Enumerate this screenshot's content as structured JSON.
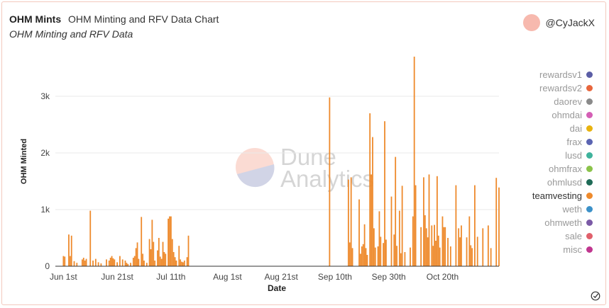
{
  "header": {
    "title": "OHM Mints",
    "subtitle": "OHM Minting and RFV Data Chart",
    "description": "OHM Minting and RFV Data"
  },
  "author": {
    "handle": "@CyJackX",
    "avatar_color": "#f7b9ae"
  },
  "watermark": {
    "line1": "Dune",
    "line2": "Analytics"
  },
  "chart_data": {
    "type": "bar",
    "xlabel": "Date",
    "ylabel": "OHM Minted",
    "x_range": [
      "2021-05-29",
      "2021-11-10"
    ],
    "ylim": [
      0,
      3700
    ],
    "y_ticks": [
      {
        "value": 0,
        "label": "0"
      },
      {
        "value": 1000,
        "label": "1k"
      },
      {
        "value": 2000,
        "label": "2k"
      },
      {
        "value": 3000,
        "label": "3k"
      }
    ],
    "x_ticks": [
      {
        "date": "2021-06-01",
        "label": "Jun 1st"
      },
      {
        "date": "2021-06-21",
        "label": "Jun 21st"
      },
      {
        "date": "2021-07-11",
        "label": "Jul 11th"
      },
      {
        "date": "2021-08-01",
        "label": "Aug 1st"
      },
      {
        "date": "2021-08-21",
        "label": "Aug 21st"
      },
      {
        "date": "2021-09-10",
        "label": "Sep 10th"
      },
      {
        "date": "2021-09-30",
        "label": "Sep 30th"
      },
      {
        "date": "2021-10-20",
        "label": "Oct 20th"
      }
    ],
    "grid": true,
    "legend_position": "right",
    "series": [
      {
        "name": "teamvesting",
        "color": "#ee8a2c",
        "points": [
          [
            "2021-06-01T00:00",
            180
          ],
          [
            "2021-06-01T12:00",
            170
          ],
          [
            "2021-06-03T00:00",
            560
          ],
          [
            "2021-06-03T12:00",
            180
          ],
          [
            "2021-06-04T00:00",
            540
          ],
          [
            "2021-06-05T00:00",
            90
          ],
          [
            "2021-06-06T00:00",
            60
          ],
          [
            "2021-06-08T00:00",
            120
          ],
          [
            "2021-06-08T12:00",
            150
          ],
          [
            "2021-06-09T00:00",
            100
          ],
          [
            "2021-06-09T12:00",
            130
          ],
          [
            "2021-06-11T00:00",
            980
          ],
          [
            "2021-06-12T00:00",
            100
          ],
          [
            "2021-06-13T00:00",
            130
          ],
          [
            "2021-06-14T00:00",
            70
          ],
          [
            "2021-06-15T00:00",
            50
          ],
          [
            "2021-06-17T00:00",
            120
          ],
          [
            "2021-06-18T00:00",
            100
          ],
          [
            "2021-06-18T12:00",
            150
          ],
          [
            "2021-06-19T00:00",
            180
          ],
          [
            "2021-06-19T12:00",
            140
          ],
          [
            "2021-06-20T00:00",
            120
          ],
          [
            "2021-06-21T00:00",
            70
          ],
          [
            "2021-06-22T00:00",
            180
          ],
          [
            "2021-06-23T00:00",
            120
          ],
          [
            "2021-06-24T00:00",
            100
          ],
          [
            "2021-06-24T12:00",
            60
          ],
          [
            "2021-06-25T00:00",
            40
          ],
          [
            "2021-06-26T00:00",
            60
          ],
          [
            "2021-06-27T00:00",
            150
          ],
          [
            "2021-06-27T12:00",
            180
          ],
          [
            "2021-06-28T00:00",
            320
          ],
          [
            "2021-06-28T12:00",
            420
          ],
          [
            "2021-06-29T00:00",
            130
          ],
          [
            "2021-06-30T00:00",
            870
          ],
          [
            "2021-06-30T12:00",
            220
          ],
          [
            "2021-07-01T00:00",
            100
          ],
          [
            "2021-07-02T00:00",
            60
          ],
          [
            "2021-07-03T00:00",
            480
          ],
          [
            "2021-07-03T12:00",
            300
          ],
          [
            "2021-07-04T00:00",
            820
          ],
          [
            "2021-07-04T12:00",
            430
          ],
          [
            "2021-07-05T00:00",
            100
          ],
          [
            "2021-07-06T00:00",
            280
          ],
          [
            "2021-07-06T12:00",
            500
          ],
          [
            "2021-07-07T00:00",
            170
          ],
          [
            "2021-07-07T12:00",
            130
          ],
          [
            "2021-07-08T00:00",
            430
          ],
          [
            "2021-07-08T12:00",
            250
          ],
          [
            "2021-07-09T00:00",
            220
          ],
          [
            "2021-07-10T00:00",
            840
          ],
          [
            "2021-07-10T12:00",
            880
          ],
          [
            "2021-07-11T00:00",
            880
          ],
          [
            "2021-07-11T12:00",
            480
          ],
          [
            "2021-07-12T00:00",
            250
          ],
          [
            "2021-07-12T12:00",
            160
          ],
          [
            "2021-07-13T00:00",
            100
          ],
          [
            "2021-07-14T00:00",
            360
          ],
          [
            "2021-07-14T12:00",
            120
          ],
          [
            "2021-07-15T00:00",
            80
          ],
          [
            "2021-07-15T12:00",
            70
          ],
          [
            "2021-07-16T00:00",
            100
          ],
          [
            "2021-07-17T00:00",
            160
          ],
          [
            "2021-07-17T12:00",
            540
          ],
          [
            "2021-09-08T00:00",
            2980
          ],
          [
            "2021-09-15T00:00",
            1530
          ],
          [
            "2021-09-15T12:00",
            420
          ],
          [
            "2021-09-16T00:00",
            1570
          ],
          [
            "2021-09-16T12:00",
            320
          ],
          [
            "2021-09-19T00:00",
            1180
          ],
          [
            "2021-09-19T12:00",
            220
          ],
          [
            "2021-09-20T00:00",
            350
          ],
          [
            "2021-09-20T12:00",
            390
          ],
          [
            "2021-09-21T00:00",
            740
          ],
          [
            "2021-09-21T12:00",
            320
          ],
          [
            "2021-09-22T00:00",
            200
          ],
          [
            "2021-09-23T00:00",
            2700
          ],
          [
            "2021-09-23T12:00",
            1620
          ],
          [
            "2021-09-24T00:00",
            2280
          ],
          [
            "2021-09-24T12:00",
            670
          ],
          [
            "2021-09-25T00:00",
            330
          ],
          [
            "2021-09-26T00:00",
            350
          ],
          [
            "2021-09-26T12:00",
            970
          ],
          [
            "2021-09-27T00:00",
            520
          ],
          [
            "2021-09-28T00:00",
            410
          ],
          [
            "2021-09-28T12:00",
            2560
          ],
          [
            "2021-09-29T00:00",
            470
          ],
          [
            "2021-10-01T00:00",
            1230
          ],
          [
            "2021-10-02T00:00",
            560
          ],
          [
            "2021-10-02T12:00",
            1930
          ],
          [
            "2021-10-03T00:00",
            360
          ],
          [
            "2021-10-04T00:00",
            980
          ],
          [
            "2021-10-04T12:00",
            230
          ],
          [
            "2021-10-05T00:00",
            1420
          ],
          [
            "2021-10-06T00:00",
            250
          ],
          [
            "2021-10-08T00:00",
            330
          ],
          [
            "2021-10-09T00:00",
            880
          ],
          [
            "2021-10-09T12:00",
            3700
          ],
          [
            "2021-10-10T00:00",
            1430
          ],
          [
            "2021-10-12T00:00",
            690
          ],
          [
            "2021-10-13T00:00",
            1570
          ],
          [
            "2021-10-13T12:00",
            900
          ],
          [
            "2021-10-14T00:00",
            670
          ],
          [
            "2021-10-14T12:00",
            510
          ],
          [
            "2021-10-15T00:00",
            1620
          ],
          [
            "2021-10-16T00:00",
            720
          ],
          [
            "2021-10-16T12:00",
            360
          ],
          [
            "2021-10-17T00:00",
            730
          ],
          [
            "2021-10-17T12:00",
            450
          ],
          [
            "2021-10-18T00:00",
            1590
          ],
          [
            "2021-10-18T12:00",
            540
          ],
          [
            "2021-10-19T00:00",
            330
          ],
          [
            "2021-10-20T00:00",
            880
          ],
          [
            "2021-10-20T12:00",
            690
          ],
          [
            "2021-10-21T00:00",
            690
          ],
          [
            "2021-10-22T00:00",
            500
          ],
          [
            "2021-10-23T00:00",
            350
          ],
          [
            "2021-10-25T00:00",
            1430
          ],
          [
            "2021-10-26T00:00",
            670
          ],
          [
            "2021-10-26T12:00",
            510
          ],
          [
            "2021-10-27T00:00",
            720
          ],
          [
            "2021-10-29T00:00",
            510
          ],
          [
            "2021-10-30T00:00",
            880
          ],
          [
            "2021-10-30T12:00",
            370
          ],
          [
            "2021-10-31T00:00",
            320
          ],
          [
            "2021-11-01T00:00",
            1430
          ],
          [
            "2021-11-02T00:00",
            520
          ],
          [
            "2021-11-04T00:00",
            670
          ],
          [
            "2021-11-06T00:00",
            720
          ],
          [
            "2021-11-07T00:00",
            320
          ],
          [
            "2021-11-09T00:00",
            1560
          ],
          [
            "2021-11-10T00:00",
            1390
          ]
        ]
      }
    ],
    "legend": [
      {
        "name": "rewardsv1",
        "color": "#5b5ea6",
        "active": false
      },
      {
        "name": "rewardsv2",
        "color": "#e8663d",
        "active": false
      },
      {
        "name": "daorev",
        "color": "#8a8a8a",
        "active": false
      },
      {
        "name": "ohmdai",
        "color": "#d45fb5",
        "active": false
      },
      {
        "name": "dai",
        "color": "#e8b30f",
        "active": false
      },
      {
        "name": "frax",
        "color": "#5b64b2",
        "active": false
      },
      {
        "name": "lusd",
        "color": "#3fb39c",
        "active": false
      },
      {
        "name": "ohmfrax",
        "color": "#8bc34a",
        "active": false
      },
      {
        "name": "ohmlusd",
        "color": "#1f6b57",
        "active": false
      },
      {
        "name": "teamvesting",
        "color": "#ee8a2c",
        "active": true
      },
      {
        "name": "weth",
        "color": "#3c91c8",
        "active": false
      },
      {
        "name": "ohmweth",
        "color": "#7b5aa6",
        "active": false
      },
      {
        "name": "sale",
        "color": "#e0606b",
        "active": false
      },
      {
        "name": "misc",
        "color": "#c0368f",
        "active": false
      }
    ]
  }
}
